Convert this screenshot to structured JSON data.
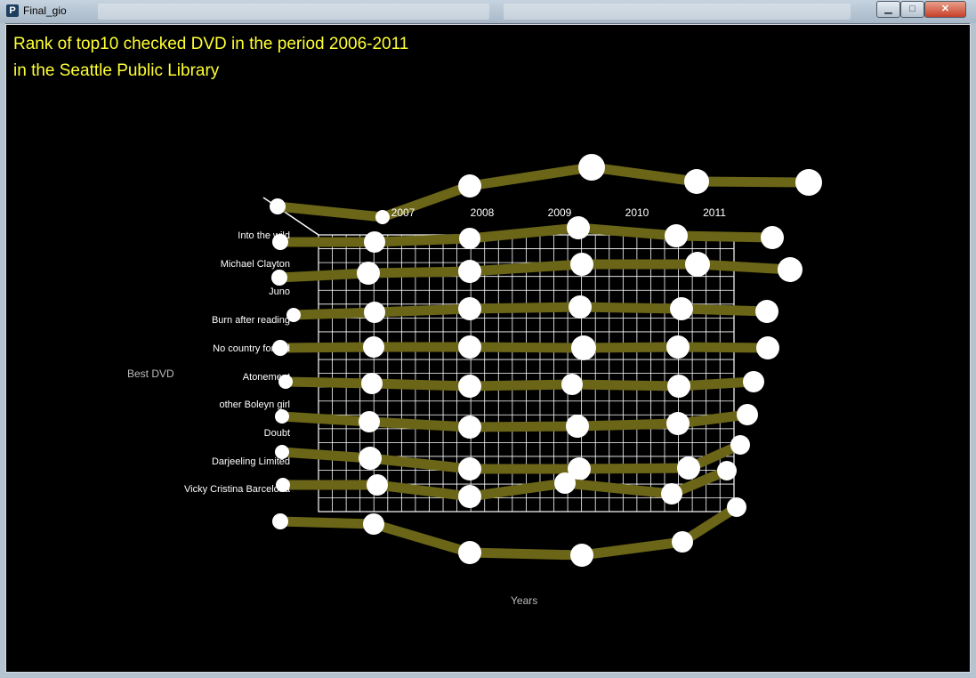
{
  "window": {
    "title": "Final_gio",
    "app_icon": "P",
    "controls": [
      "minimize-icon",
      "maximize-icon",
      "close-icon"
    ]
  },
  "colors": {
    "background": "#000000",
    "title": "#ffff33",
    "line": "#6b6518",
    "marker": "#ffffff",
    "grid": "#ffffff",
    "label": "#ffffff",
    "axis_label": "#bbbbbb"
  },
  "chart_data": {
    "type": "line",
    "title": "Rank of top10 checked DVD in the period 2006-2011",
    "subtitle": "in the Seattle Public Library",
    "xlabel": "Years",
    "ylabel": "Best DVD",
    "years_shown": [
      "2007",
      "2008",
      "2009",
      "2010",
      "2011"
    ],
    "row_labels": [
      "Into the wild",
      "Michael Clayton",
      "Juno",
      "Burn after reading",
      "No country for old",
      "Atonement",
      "other Boleyn girl",
      "Doubt",
      "Darjeeling Limited",
      "Vicky Cristina Barcelona"
    ],
    "grid": true,
    "legend": "none"
  }
}
